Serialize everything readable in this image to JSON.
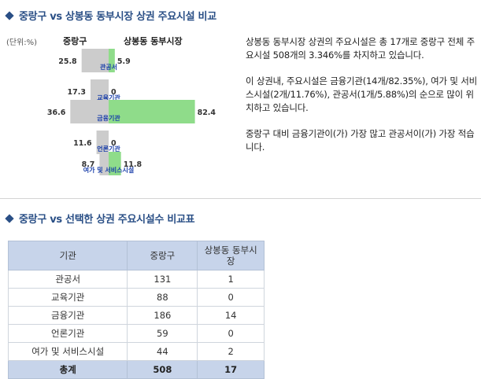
{
  "section1": {
    "title": "중랑구 vs 상봉동 동부시장 상권 주요시설 비교"
  },
  "section2": {
    "title": "중랑구 vs 선택한 상권 주요시설수 비교표"
  },
  "chart_data": {
    "type": "bar",
    "unit_label": "(단위:%)",
    "categories": [
      "관공서",
      "교육기관",
      "금융기관",
      "언론기관",
      "여가 및 서비스시설"
    ],
    "series": [
      {
        "name": "중랑구",
        "values": [
          25.8,
          17.3,
          36.6,
          11.6,
          8.7
        ],
        "color": "#cccccc"
      },
      {
        "name": "상봉동 동부시장",
        "values": [
          5.9,
          0,
          82.4,
          0,
          11.8
        ],
        "color": "#8fdc8a"
      }
    ],
    "label_texts_left": [
      "25.8",
      "17.3",
      "36.6",
      "11.6",
      "8.7"
    ],
    "label_texts_right": [
      "5.9",
      "0",
      "82.4",
      "0",
      "11.8"
    ],
    "category_label_color": "#1a3faa"
  },
  "description": [
    "상봉동 동부시장 상권의 주요시설은 총 17개로 중랑구 전체 주요시설 508개의 3.346%를 차지하고 있습니다.",
    "이 상권내, 주요시설은 금융기관(14개/82.35%), 여가 및 서비스시설(2개/11.76%), 관공서(1개/5.88%)의 순으로 많이 위치하고 있습니다.",
    "중랑구 대비 금융기관이(가) 가장 많고 관공서이(가) 가장 적습니다."
  ],
  "table": {
    "headers": [
      "기관",
      "중랑구",
      "상봉동 동부시장"
    ],
    "rows": [
      [
        "관공서",
        "131",
        "1"
      ],
      [
        "교육기관",
        "88",
        "0"
      ],
      [
        "금융기관",
        "186",
        "14"
      ],
      [
        "언론기관",
        "59",
        "0"
      ],
      [
        "여가 및 서비스시설",
        "44",
        "2"
      ]
    ],
    "total": [
      "총계",
      "508",
      "17"
    ]
  },
  "colors": {
    "title": "#2a4f86",
    "table_header_bg": "#c7d4ea",
    "bar_left": "#cccccc",
    "bar_right": "#8fdc8a"
  }
}
